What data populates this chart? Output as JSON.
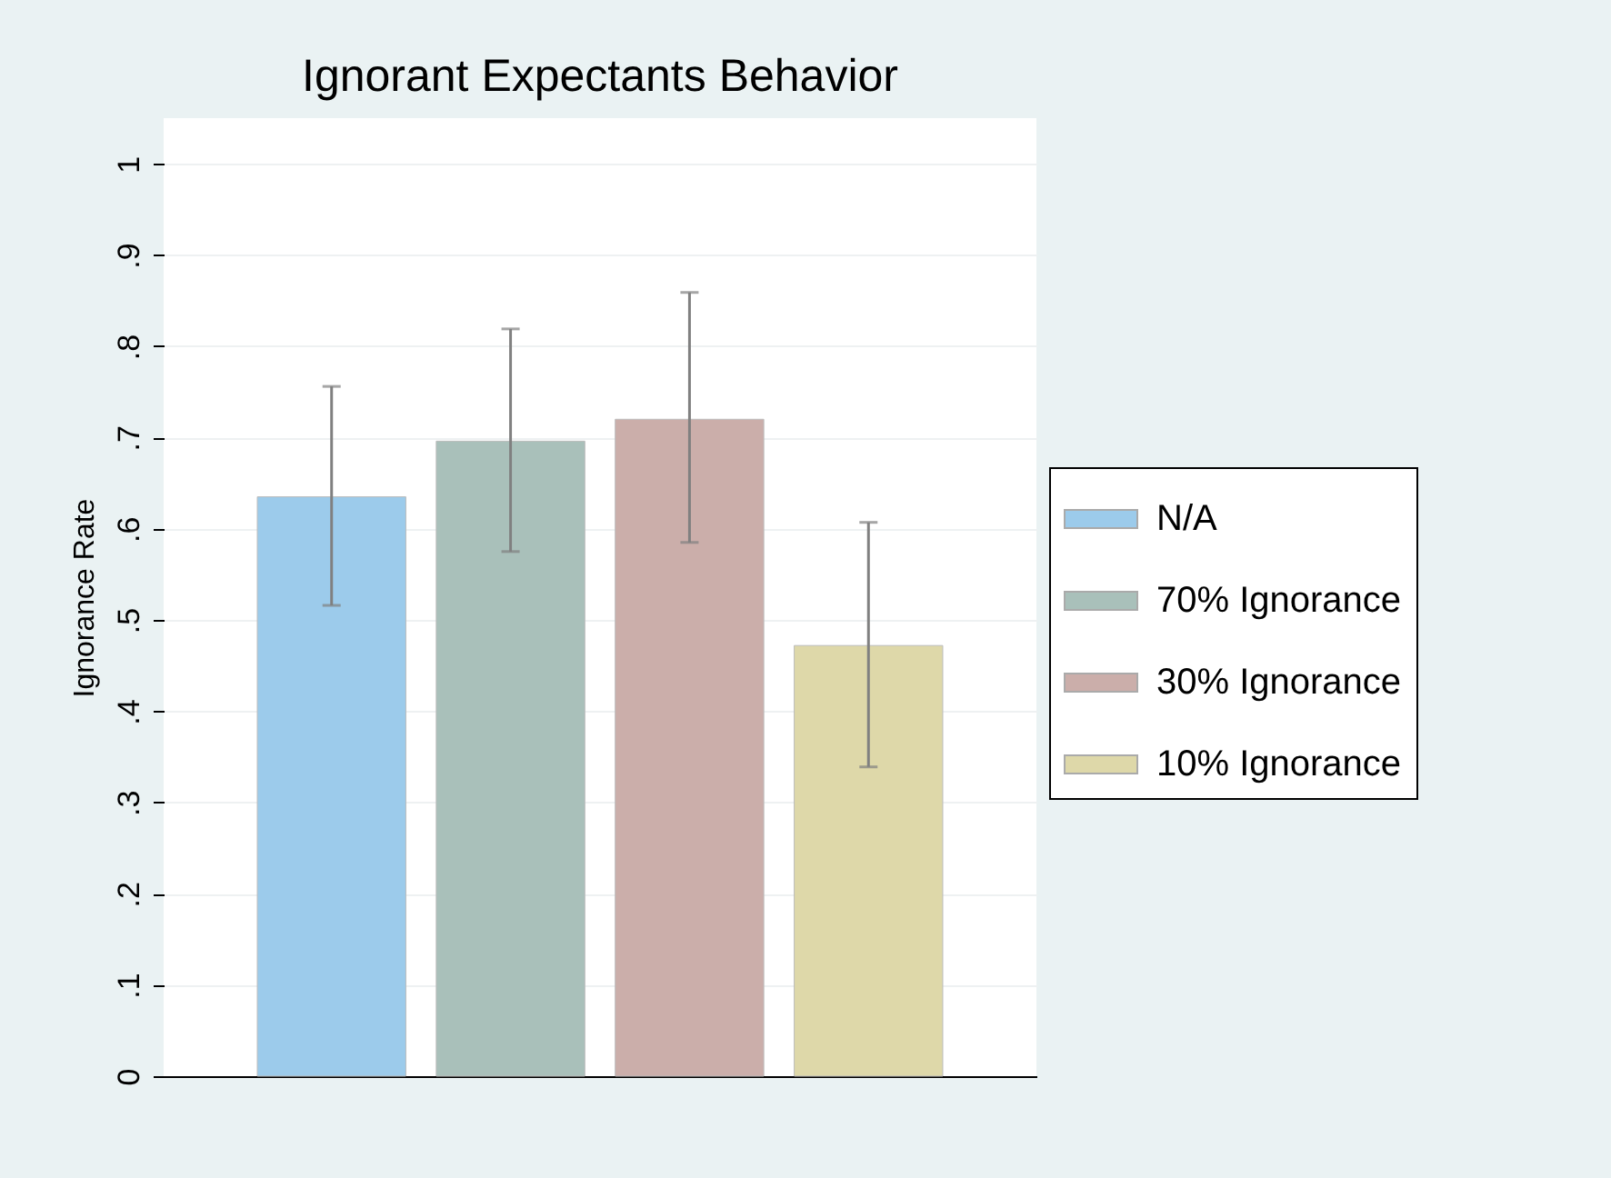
{
  "chart_data": {
    "type": "bar",
    "title": "Ignorant Expectants Behavior",
    "ylabel": "Ignorance Rate",
    "categories": [
      null
    ],
    "series": [
      {
        "name": "N/A",
        "color": "#9ccbeb",
        "values": [
          0.635
        ],
        "errors": [
          [
            0.516,
            0.756
          ]
        ]
      },
      {
        "name": "70% Ignorance",
        "color": "#a9c0ba",
        "values": [
          0.696
        ],
        "errors": [
          [
            0.575,
            0.819
          ]
        ]
      },
      {
        "name": "30% Ignorance",
        "color": "#cbaeaa",
        "values": [
          0.72
        ],
        "errors": [
          [
            0.585,
            0.859
          ]
        ]
      },
      {
        "name": "10% Ignorance",
        "color": "#ded8a9",
        "values": [
          0.472
        ],
        "errors": [
          [
            0.339,
            0.607
          ]
        ]
      }
    ],
    "ylim": [
      0,
      1.05
    ],
    "yticks": [
      {
        "value": 0,
        "label": "0"
      },
      {
        "value": 0.1,
        "label": ".1"
      },
      {
        "value": 0.2,
        "label": ".2"
      },
      {
        "value": 0.3,
        "label": ".3"
      },
      {
        "value": 0.4,
        "label": ".4"
      },
      {
        "value": 0.5,
        "label": ".5"
      },
      {
        "value": 0.6,
        "label": ".6"
      },
      {
        "value": 0.7,
        "label": ".7"
      },
      {
        "value": 0.8,
        "label": ".8"
      },
      {
        "value": 0.9,
        "label": ".9"
      },
      {
        "value": 1,
        "label": "1"
      }
    ],
    "grid": "y",
    "legend": "right",
    "tick_labels": "y"
  }
}
